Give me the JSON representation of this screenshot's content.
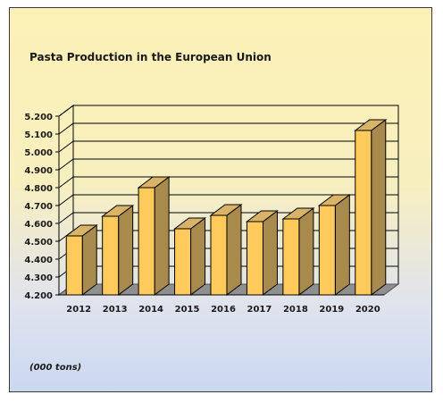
{
  "chart_data": {
    "type": "bar",
    "title": "Pasta Production in the European Union",
    "unit_note": "(000 tons)",
    "categories": [
      "2012",
      "2013",
      "2014",
      "2015",
      "2016",
      "2017",
      "2018",
      "2019",
      "2020"
    ],
    "values": [
      4530,
      4640,
      4800,
      4570,
      4645,
      4610,
      4625,
      4700,
      5120
    ],
    "yticks": [
      "4.200",
      "4.300",
      "4.400",
      "4.500",
      "4.600",
      "4.700",
      "4.800",
      "4.900",
      "5.000",
      "5.100",
      "5.200"
    ],
    "ylim": [
      4200,
      5200
    ],
    "grid": true,
    "style": "3d",
    "colors": {
      "bar_front": "#ffca5c",
      "bar_top": "#d9b468",
      "bar_side": "#a88a4c",
      "floor": "#8f8f8f",
      "gridline": "#000000"
    }
  }
}
